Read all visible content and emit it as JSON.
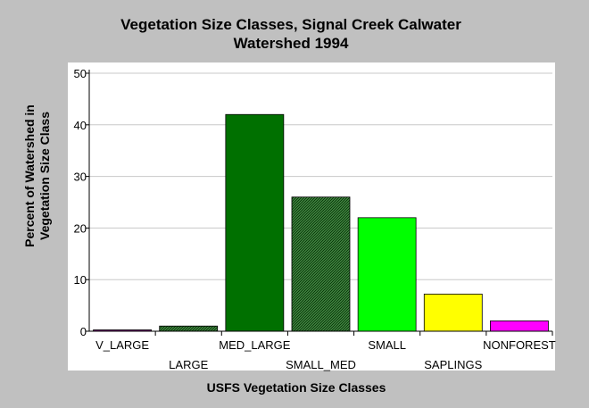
{
  "chart_data": {
    "type": "bar",
    "title_lines": [
      "Vegetation Size Classes, Signal Creek Calwater",
      "Watershed 1994"
    ],
    "xlabel": "USFS Vegetation Size Classes",
    "ylabel_lines": [
      "Percent of Watershed in",
      "Vegetation Size Class"
    ],
    "ylim": [
      0,
      50
    ],
    "yticks": [
      0,
      10,
      20,
      30,
      40,
      50
    ],
    "grid": true,
    "categories": [
      "V_LARGE",
      "LARGE",
      "MED_LARGE",
      "SMALL_MED",
      "SMALL",
      "SAPLINGS",
      "NONFOREST"
    ],
    "values": [
      0.2,
      1,
      42,
      26,
      22,
      7.2,
      2
    ],
    "colors": [
      "#800080",
      "#0a4a0a",
      "#007000",
      "#006a00",
      "#00ff00",
      "#ffff00",
      "#ff00ff"
    ],
    "hatched": [
      false,
      true,
      false,
      true,
      false,
      false,
      false
    ],
    "label_row": [
      "upper",
      "lower",
      "upper",
      "lower",
      "upper",
      "lower",
      "upper"
    ]
  }
}
